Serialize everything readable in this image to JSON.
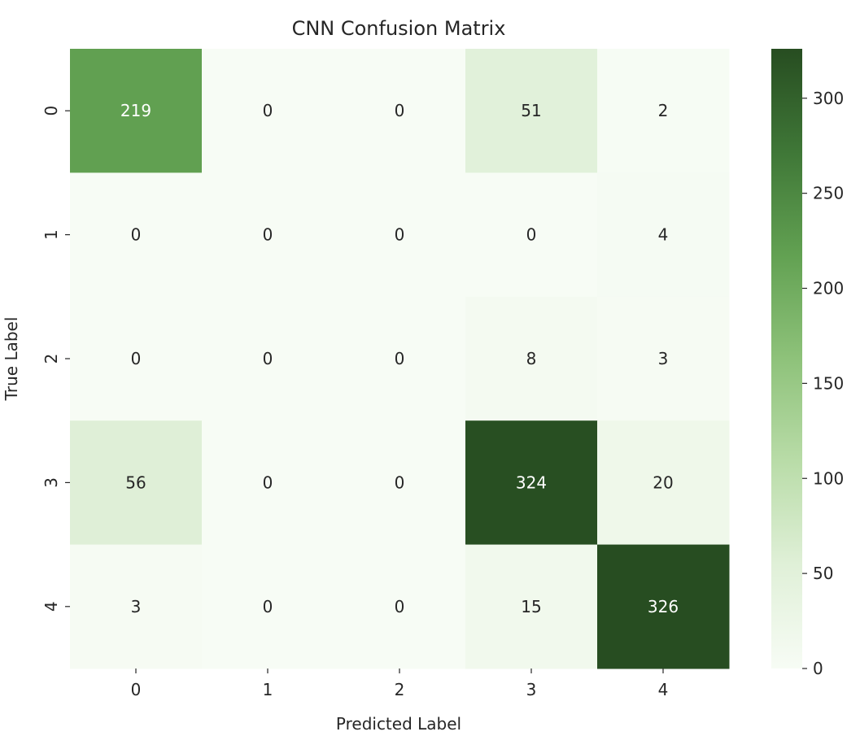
{
  "chart_data": {
    "type": "heatmap",
    "title": "CNN Confusion Matrix",
    "xlabel": "Predicted Label",
    "ylabel": "True Label",
    "x_categories": [
      "0",
      "1",
      "2",
      "3",
      "4"
    ],
    "y_categories": [
      "0",
      "1",
      "2",
      "3",
      "4"
    ],
    "values": [
      [
        219,
        0,
        0,
        51,
        2
      ],
      [
        0,
        0,
        0,
        0,
        4
      ],
      [
        0,
        0,
        0,
        8,
        3
      ],
      [
        56,
        0,
        0,
        324,
        20
      ],
      [
        3,
        0,
        0,
        15,
        326
      ]
    ],
    "colorbar": {
      "range": [
        0,
        326
      ],
      "ticks": [
        0,
        50,
        100,
        150,
        200,
        250,
        300
      ],
      "colors": [
        "#f7fcf5",
        "#e0f0d8",
        "#b9dca8",
        "#8ec27a",
        "#62a152",
        "#3f7737",
        "#274d21"
      ]
    },
    "annotation_colors": {
      "dark": "#262626",
      "light": "#ffffff"
    }
  }
}
